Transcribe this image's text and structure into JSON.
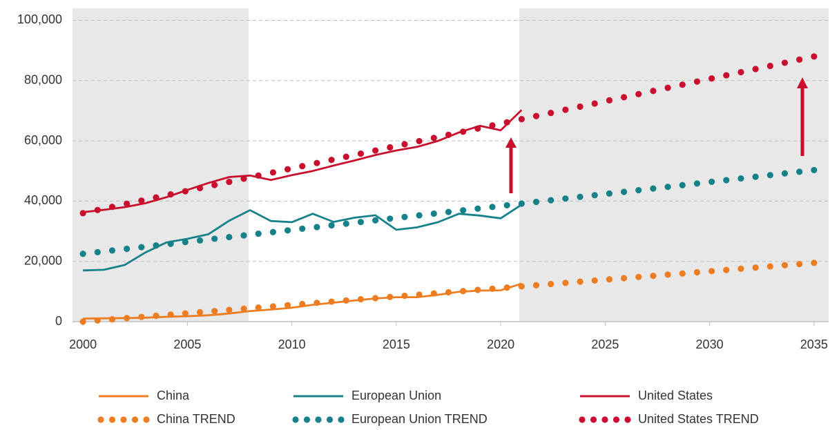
{
  "chart_data": {
    "type": "line",
    "xlim": [
      1999.5,
      2035.7
    ],
    "xticks": [
      2000,
      2005,
      2010,
      2015,
      2020,
      2025,
      2030,
      2035
    ],
    "ylim": [
      0,
      104000
    ],
    "yticks": [
      0,
      {
        "value": 20000,
        "label": "20,000"
      },
      {
        "value": 40000,
        "label": "40,000"
      },
      {
        "value": 60000,
        "label": "60,000"
      },
      {
        "value": 80000,
        "label": "80,000"
      },
      {
        "value": 100000,
        "label": "100,000"
      }
    ],
    "grid": true,
    "series": [
      {
        "name": "China",
        "color": "#ed7d22",
        "style": "line",
        "x": [
          2000,
          2001,
          2002,
          2003,
          2004,
          2005,
          2006,
          2007,
          2008,
          2009,
          2010,
          2011,
          2012,
          2013,
          2014,
          2015,
          2016,
          2017,
          2018,
          2019,
          2020,
          2021
        ],
        "values": [
          1000,
          1100,
          1200,
          1300,
          1600,
          1800,
          2100,
          2700,
          3500,
          4000,
          4600,
          5600,
          6300,
          7000,
          7700,
          8100,
          8100,
          8900,
          9900,
          10300,
          10400,
          12600
        ]
      },
      {
        "name": "European Union",
        "color": "#17818a",
        "style": "line",
        "x": [
          2000,
          2001,
          2002,
          2003,
          2004,
          2005,
          2006,
          2007,
          2008,
          2009,
          2010,
          2011,
          2012,
          2013,
          2014,
          2015,
          2016,
          2017,
          2018,
          2019,
          2020,
          2021
        ],
        "values": [
          17000,
          17200,
          18800,
          23000,
          26300,
          27500,
          29000,
          33500,
          37000,
          33400,
          33000,
          35800,
          33100,
          34500,
          35300,
          30500,
          31300,
          33000,
          35800,
          35200,
          34300,
          38800
        ]
      },
      {
        "name": "United States",
        "color": "#c8102e",
        "style": "line",
        "x": [
          2000,
          2001,
          2002,
          2003,
          2004,
          2005,
          2006,
          2007,
          2008,
          2009,
          2010,
          2011,
          2012,
          2013,
          2014,
          2015,
          2016,
          2017,
          2018,
          2019,
          2020,
          2021
        ],
        "values": [
          36300,
          37100,
          38000,
          39300,
          41300,
          43700,
          46000,
          48000,
          48500,
          47000,
          48600,
          50000,
          51800,
          53500,
          55300,
          56800,
          58000,
          60000,
          62800,
          65000,
          63500,
          70200
        ]
      },
      {
        "name": "China TREND",
        "color": "#ed7d22",
        "style": "dots",
        "x": [
          2000,
          2000.7,
          2001.4,
          2002.1,
          2002.8,
          2003.5,
          2004.2,
          2004.9,
          2005.6,
          2006.3,
          2007,
          2007.7,
          2008.4,
          2009.1,
          2009.8,
          2010.5,
          2011.2,
          2011.9,
          2012.6,
          2013.3,
          2014,
          2014.7,
          2015.4,
          2016.1,
          2016.8,
          2017.5,
          2018.2,
          2018.9,
          2019.6,
          2020.3,
          2021,
          2021.7,
          2022.4,
          2023.1,
          2023.8,
          2024.5,
          2025.2,
          2025.9,
          2026.6,
          2027.3,
          2028,
          2028.7,
          2029.4,
          2030.1,
          2030.8,
          2031.5,
          2032.2,
          2032.9,
          2033.6,
          2034.3,
          2035
        ],
        "values": [
          0,
          390,
          780,
          1170,
          1560,
          1950,
          2340,
          2730,
          3120,
          3510,
          3900,
          4290,
          4680,
          5070,
          5460,
          5850,
          6240,
          6630,
          7020,
          7410,
          7800,
          8190,
          8580,
          8970,
          9360,
          9750,
          10140,
          10530,
          10920,
          11310,
          11700,
          12090,
          12480,
          12870,
          13260,
          13650,
          14040,
          14430,
          14820,
          15210,
          15600,
          15990,
          16380,
          16770,
          17160,
          17550,
          17940,
          18330,
          18720,
          19110,
          19500
        ]
      },
      {
        "name": "European Union TREND",
        "color": "#17818a",
        "style": "dots",
        "x": [
          2000,
          2000.7,
          2001.4,
          2002.1,
          2002.8,
          2003.5,
          2004.2,
          2004.9,
          2005.6,
          2006.3,
          2007,
          2007.7,
          2008.4,
          2009.1,
          2009.8,
          2010.5,
          2011.2,
          2011.9,
          2012.6,
          2013.3,
          2014,
          2014.7,
          2015.4,
          2016.1,
          2016.8,
          2017.5,
          2018.2,
          2018.9,
          2019.6,
          2020.3,
          2021,
          2021.7,
          2022.4,
          2023.1,
          2023.8,
          2024.5,
          2025.2,
          2025.9,
          2026.6,
          2027.3,
          2028,
          2028.7,
          2029.4,
          2030.1,
          2030.8,
          2031.5,
          2032.2,
          2032.9,
          2033.6,
          2034.3,
          2035
        ],
        "values": [
          22500,
          23056,
          23612,
          24168,
          24724,
          25280,
          25836,
          26392,
          26948,
          27504,
          28060,
          28616,
          29172,
          29728,
          30284,
          30840,
          31396,
          31952,
          32508,
          33064,
          33620,
          34176,
          34732,
          35288,
          35844,
          36400,
          36956,
          37512,
          38068,
          38624,
          39180,
          39736,
          40292,
          40848,
          41404,
          41960,
          42516,
          43072,
          43628,
          44184,
          44740,
          45296,
          45852,
          46408,
          46964,
          47520,
          48076,
          48632,
          49188,
          49744,
          50300
        ]
      },
      {
        "name": "United States TREND",
        "color": "#c8102e",
        "style": "dots",
        "x": [
          2000,
          2000.7,
          2001.4,
          2002.1,
          2002.8,
          2003.5,
          2004.2,
          2004.9,
          2005.6,
          2006.3,
          2007,
          2007.7,
          2008.4,
          2009.1,
          2009.8,
          2010.5,
          2011.2,
          2011.9,
          2012.6,
          2013.3,
          2014,
          2014.7,
          2015.4,
          2016.1,
          2016.8,
          2017.5,
          2018.2,
          2018.9,
          2019.6,
          2020.3,
          2021,
          2021.7,
          2022.4,
          2023.1,
          2023.8,
          2024.5,
          2025.2,
          2025.9,
          2026.6,
          2027.3,
          2028,
          2028.7,
          2029.4,
          2030.1,
          2030.8,
          2031.5,
          2032.2,
          2032.9,
          2033.6,
          2034.3,
          2035
        ],
        "values": [
          36000,
          37040,
          38080,
          39120,
          40160,
          41200,
          42240,
          43280,
          44320,
          45360,
          46400,
          47440,
          48480,
          49520,
          50560,
          51600,
          52640,
          53680,
          54720,
          55760,
          56800,
          57840,
          58880,
          59920,
          60960,
          62000,
          63040,
          64080,
          65120,
          66160,
          67200,
          68240,
          69280,
          70320,
          71360,
          72400,
          73440,
          74480,
          75520,
          76560,
          77600,
          78640,
          79680,
          80720,
          81760,
          82800,
          83840,
          84880,
          85920,
          86960,
          88000
        ]
      }
    ]
  }
}
